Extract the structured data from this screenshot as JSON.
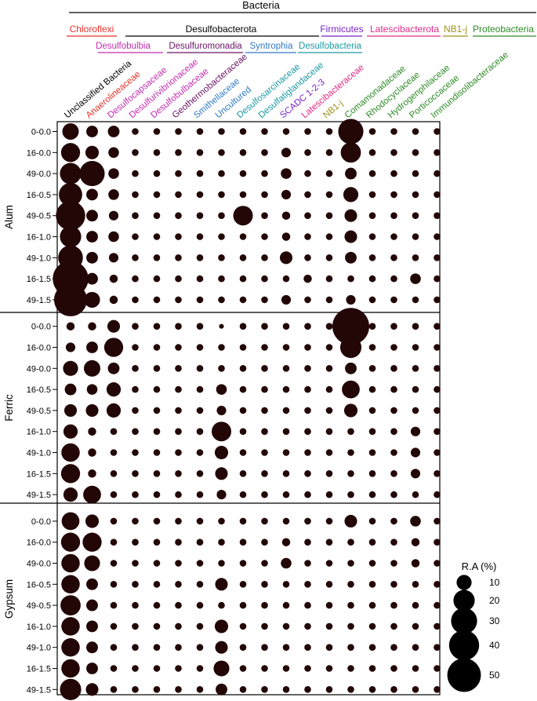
{
  "colors": {
    "chloroflexi": "#e8312b",
    "desulfobacterota": "#000000",
    "desulfobulbia": "#c42db0",
    "desulfuromonadia": "#6a1466",
    "syntrophia": "#2f79c9",
    "desulfobacteria": "#1d9aa3",
    "firmicutes": "#7a25c8",
    "latescibacterota": "#e32a86",
    "nb1j": "#9e9418",
    "proteobacteria": "#2e8b27",
    "bubble": "#230606",
    "black": "#000000"
  },
  "chart_data": {
    "type": "bubble",
    "top_label": "Bacteria",
    "phyla": [
      {
        "name": "Chloroflexi",
        "color": "chloroflexi"
      },
      {
        "name": "Desulfobacterota",
        "color": "desulfobacterota"
      },
      {
        "name": "Firmicutes",
        "color": "firmicutes"
      },
      {
        "name": "Latescibacterota",
        "color": "latescibacterota"
      },
      {
        "name": "NB1-j",
        "color": "nb1j"
      },
      {
        "name": "Proteobacteria",
        "color": "proteobacteria"
      }
    ],
    "classes": [
      {
        "name": "Desulfobulbia",
        "color": "desulfobulbia"
      },
      {
        "name": "Desulfuromonadia",
        "color": "desulfuromonadia"
      },
      {
        "name": "Syntrophia",
        "color": "syntrophia"
      },
      {
        "name": "Desulfobacteria",
        "color": "desulfobacteria"
      }
    ],
    "families": [
      {
        "name": "Unclassified Bacteria",
        "color": "black"
      },
      {
        "name": "Anaerolineaceae",
        "color": "chloroflexi"
      },
      {
        "name": "Desulfocapsaceae",
        "color": "desulfobulbia"
      },
      {
        "name": "Desulfurivibrionaceae",
        "color": "desulfobulbia"
      },
      {
        "name": "Desulfobulbaceae",
        "color": "desulfobulbia"
      },
      {
        "name": "Geothermobacteraceae",
        "color": "desulfuromonadia"
      },
      {
        "name": "Smithellaceae",
        "color": "syntrophia"
      },
      {
        "name": "Uncultured",
        "color": "syntrophia"
      },
      {
        "name": "Desulfosarcinaceae",
        "color": "desulfobacteria"
      },
      {
        "name": "Desulfatiglandaceae",
        "color": "desulfobacteria"
      },
      {
        "name": "SCADC 1-2-3",
        "color": "firmicutes"
      },
      {
        "name": "Latescibacteraceae",
        "color": "latescibacterota"
      },
      {
        "name": "NB1-j",
        "color": "nb1j"
      },
      {
        "name": "Comamonadaceae",
        "color": "proteobacteria"
      },
      {
        "name": "Rhodocyclaceae",
        "color": "proteobacteria"
      },
      {
        "name": "Hydrogenphilaceae",
        "color": "proteobacteria"
      },
      {
        "name": "Porticoccaceae",
        "color": "proteobacteria"
      },
      {
        "name": "Immundisolibacteraceae",
        "color": "proteobacteria"
      }
    ],
    "groups": [
      {
        "name": "Alum",
        "samples": [
          "0-0.0",
          "16-0.0",
          "49-0.0",
          "16-0.5",
          "49-0.5",
          "16-1.0",
          "49-1.0",
          "16-1.5",
          "49-1.5"
        ],
        "values": [
          [
            12,
            6,
            6,
            2,
            2,
            2,
            2,
            2,
            2,
            2,
            2,
            2,
            2,
            28,
            2,
            2,
            2,
            2
          ],
          [
            16,
            8,
            5,
            2,
            2,
            2,
            2,
            2,
            2,
            2,
            4,
            2,
            2,
            18,
            2,
            2,
            2,
            2
          ],
          [
            20,
            28,
            5,
            2,
            2,
            2,
            2,
            2,
            2,
            2,
            5,
            2,
            2,
            6,
            2,
            2,
            2,
            2
          ],
          [
            24,
            6,
            5,
            2,
            2,
            2,
            2,
            2,
            2,
            2,
            4,
            2,
            2,
            10,
            2,
            2,
            2,
            2
          ],
          [
            38,
            6,
            4,
            2,
            2,
            2,
            2,
            2,
            17,
            2,
            3,
            2,
            2,
            7,
            2,
            2,
            2,
            2
          ],
          [
            20,
            6,
            5,
            2,
            2,
            2,
            2,
            2,
            2,
            2,
            3,
            2,
            2,
            7,
            2,
            2,
            2,
            2
          ],
          [
            27,
            6,
            4,
            2,
            2,
            2,
            2,
            2,
            2,
            2,
            7,
            2,
            2,
            6,
            2,
            2,
            2,
            2
          ],
          [
            56,
            6,
            3,
            2,
            2,
            2,
            2,
            2,
            2,
            2,
            2,
            3,
            2,
            2,
            2,
            2,
            5,
            2
          ],
          [
            48,
            11,
            3,
            2,
            2,
            2,
            2,
            2,
            2,
            2,
            4,
            2,
            2,
            4,
            2,
            2,
            2,
            2
          ]
        ]
      },
      {
        "name": "Ferric",
        "samples": [
          "0-0.0",
          "16-0.0",
          "49-0.0",
          "16-0.5",
          "49-0.5",
          "16-1.0",
          "49-1.0",
          "16-1.5",
          "49-1.5"
        ],
        "values": [
          [
            3,
            3,
            7,
            2,
            2,
            2,
            2,
            1,
            2,
            2,
            2,
            2,
            2,
            60,
            2,
            2,
            2,
            2
          ],
          [
            4,
            6,
            16,
            2,
            2,
            2,
            2,
            2,
            2,
            2,
            2,
            2,
            2,
            20,
            2,
            2,
            2,
            2
          ],
          [
            10,
            12,
            6,
            2,
            2,
            2,
            2,
            2,
            2,
            2,
            2,
            2,
            2,
            6,
            2,
            2,
            2,
            2
          ],
          [
            6,
            5,
            9,
            2,
            2,
            2,
            2,
            5,
            2,
            2,
            2,
            2,
            2,
            14,
            2,
            2,
            2,
            2
          ],
          [
            7,
            7,
            9,
            2,
            2,
            2,
            2,
            4,
            2,
            2,
            2,
            2,
            2,
            8,
            2,
            2,
            2,
            2
          ],
          [
            9,
            3,
            2,
            2,
            2,
            2,
            2,
            17,
            2,
            2,
            2,
            2,
            2,
            2,
            2,
            2,
            4,
            2
          ],
          [
            15,
            3,
            2,
            2,
            2,
            2,
            2,
            8,
            2,
            2,
            2,
            2,
            2,
            2,
            2,
            2,
            4,
            2
          ],
          [
            16,
            3,
            2,
            2,
            2,
            2,
            2,
            7,
            2,
            2,
            2,
            2,
            2,
            2,
            2,
            2,
            4,
            2
          ],
          [
            9,
            14,
            2,
            2,
            2,
            2,
            2,
            4,
            2,
            2,
            2,
            2,
            2,
            2,
            2,
            2,
            2,
            2
          ]
        ]
      },
      {
        "name": "Gypsum",
        "samples": [
          "0-0.0",
          "16-0.0",
          "49-0.0",
          "16-0.5",
          "49-0.5",
          "16-1.0",
          "49-1.0",
          "16-1.5",
          "49-1.5"
        ],
        "values": [
          [
            14,
            8,
            2,
            2,
            2,
            2,
            2,
            2,
            2,
            2,
            2,
            2,
            2,
            7,
            2,
            2,
            5,
            2
          ],
          [
            16,
            16,
            2,
            2,
            2,
            2,
            2,
            2,
            2,
            2,
            3,
            2,
            2,
            2,
            2,
            2,
            3,
            2
          ],
          [
            15,
            11,
            2,
            2,
            2,
            2,
            2,
            2,
            2,
            2,
            5,
            2,
            2,
            2,
            2,
            2,
            3,
            2
          ],
          [
            15,
            6,
            2,
            2,
            2,
            2,
            2,
            7,
            2,
            2,
            2,
            2,
            2,
            2,
            2,
            2,
            2,
            2
          ],
          [
            18,
            6,
            2,
            2,
            2,
            2,
            2,
            2,
            2,
            2,
            2,
            2,
            2,
            2,
            2,
            2,
            2,
            2
          ],
          [
            15,
            6,
            2,
            2,
            2,
            2,
            2,
            8,
            2,
            2,
            2,
            2,
            2,
            2,
            2,
            2,
            2,
            2
          ],
          [
            15,
            6,
            2,
            2,
            2,
            2,
            2,
            7,
            2,
            2,
            2,
            2,
            2,
            2,
            2,
            2,
            2,
            2
          ],
          [
            15,
            6,
            2,
            2,
            2,
            2,
            2,
            11,
            2,
            2,
            2,
            2,
            2,
            2,
            2,
            2,
            2,
            2
          ],
          [
            20,
            7,
            2,
            2,
            2,
            2,
            2,
            6,
            2,
            2,
            2,
            2,
            2,
            2,
            2,
            2,
            2,
            2
          ]
        ]
      }
    ],
    "legend": {
      "title": "R.A (%)",
      "values": [
        10,
        20,
        30,
        40,
        50
      ]
    }
  }
}
